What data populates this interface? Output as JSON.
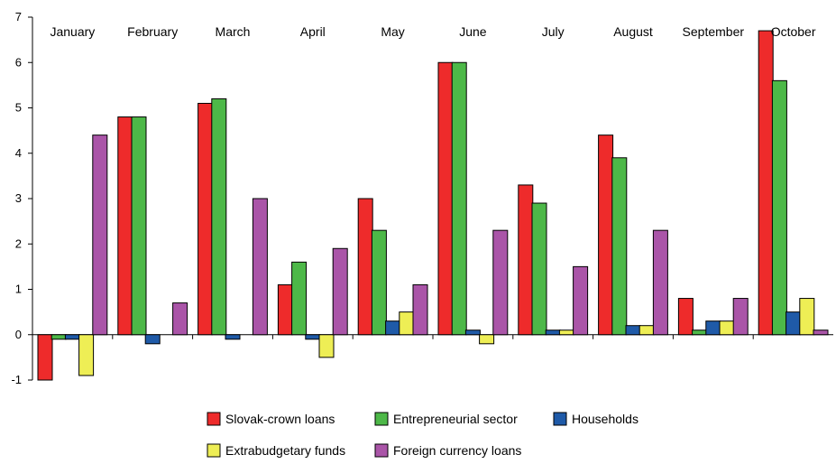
{
  "chart_data": {
    "type": "bar",
    "categories": [
      "January",
      "February",
      "March",
      "April",
      "May",
      "June",
      "July",
      "August",
      "September",
      "October"
    ],
    "ylim": [
      -1,
      7
    ],
    "yticks": [
      -1,
      0,
      1,
      2,
      3,
      4,
      5,
      6,
      7
    ],
    "title": "",
    "xlabel": "",
    "ylabel": "",
    "legend_position": "bottom",
    "series": [
      {
        "name": "Slovak-crown loans",
        "color": "#ee2b2b",
        "values": [
          -1.0,
          4.8,
          5.1,
          1.1,
          3.0,
          6.0,
          3.3,
          4.4,
          0.8,
          6.7
        ]
      },
      {
        "name": "Entrepreneurial sector",
        "color": "#4db848",
        "values": [
          -0.1,
          4.8,
          5.2,
          1.6,
          2.3,
          6.0,
          2.9,
          3.9,
          0.1,
          5.6
        ]
      },
      {
        "name": "Households",
        "color": "#1f5aa8",
        "values": [
          -0.1,
          -0.2,
          -0.1,
          -0.1,
          0.3,
          0.1,
          0.1,
          0.2,
          0.3,
          0.5
        ]
      },
      {
        "name": "Extrabudgetary funds",
        "color": "#eeee55",
        "values": [
          -0.9,
          0.0,
          0.0,
          -0.5,
          0.5,
          -0.2,
          0.1,
          0.2,
          0.3,
          0.8
        ]
      },
      {
        "name": "Foreign currency loans",
        "color": "#aa55a8",
        "values": [
          4.4,
          0.7,
          3.0,
          1.9,
          1.1,
          2.3,
          1.5,
          2.3,
          0.8,
          0.1
        ]
      }
    ]
  }
}
